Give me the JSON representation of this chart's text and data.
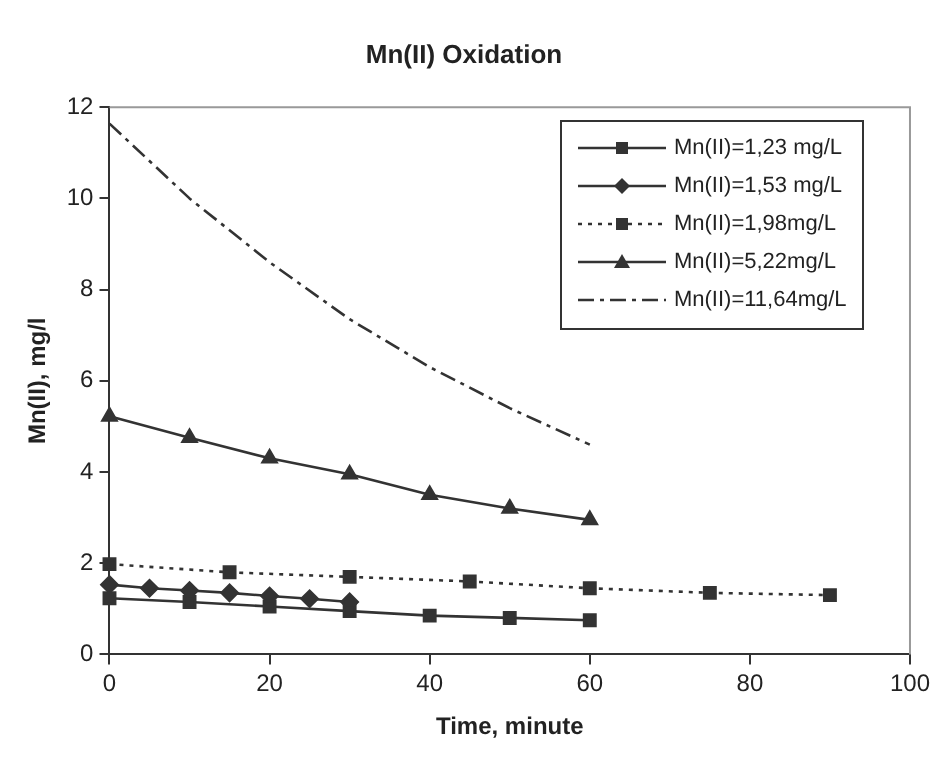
{
  "chart_data": {
    "type": "line",
    "title": "Mn(II) Oxidation",
    "xlabel": "Time, minute",
    "ylabel": "Mn(II), mg/l",
    "xlim": [
      0,
      100
    ],
    "xticks": [
      0,
      20,
      40,
      60,
      80,
      100
    ],
    "ylim": [
      0,
      12
    ],
    "yticks": [
      0,
      2,
      4,
      6,
      8,
      10,
      12
    ],
    "grid": false,
    "legend": "top right",
    "series": [
      {
        "name": "Mn(II)=1,23 mg/L",
        "color": "#333333",
        "marker": "square",
        "line_style": "solid",
        "x": [
          0,
          10,
          20,
          30,
          40,
          50,
          60
        ],
        "values": [
          1.23,
          1.15,
          1.05,
          0.95,
          0.85,
          0.8,
          0.75
        ]
      },
      {
        "name": "Mn(II)=1,53 mg/L",
        "color": "#333333",
        "marker": "diamond",
        "line_style": "solid",
        "x": [
          0,
          5,
          10,
          15,
          20,
          25,
          30
        ],
        "values": [
          1.53,
          1.45,
          1.4,
          1.35,
          1.28,
          1.22,
          1.15
        ]
      },
      {
        "name": "Mn(II)=1,98mg/L",
        "color": "#333333",
        "marker": "square",
        "line_style": "dotted",
        "x": [
          0,
          15,
          30,
          45,
          60,
          75,
          90
        ],
        "values": [
          1.98,
          1.8,
          1.7,
          1.6,
          1.45,
          1.35,
          1.3
        ]
      },
      {
        "name": "Mn(II)=5,22mg/L",
        "color": "#333333",
        "marker": "triangle",
        "line_style": "solid",
        "x": [
          0,
          10,
          20,
          30,
          40,
          50,
          60
        ],
        "values": [
          5.22,
          4.75,
          4.3,
          3.95,
          3.5,
          3.2,
          2.95
        ]
      },
      {
        "name": "Mn(II)=11,64mg/L",
        "color": "#333333",
        "marker": "none",
        "line_style": "dashed",
        "x": [
          0,
          10,
          20,
          30,
          40,
          50,
          60
        ],
        "values": [
          11.64,
          10,
          8.6,
          7.35,
          6.3,
          5.4,
          4.6
        ]
      }
    ]
  }
}
